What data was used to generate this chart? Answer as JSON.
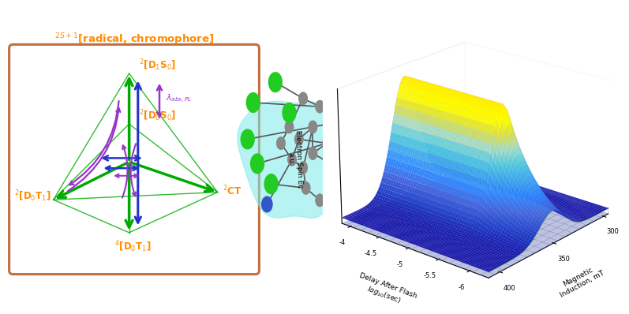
{
  "title_text": "$^{2S+1}$[radical, chromophore]",
  "title_color": "#FF8C00",
  "box_color": "#C07040",
  "bg_color": "#FFFFFF",
  "labels": {
    "D1S0": "$^{2}$[D$_1$S$_0$]",
    "D0S0": "$^{2}$[D$_0$S$_0$]",
    "D0T1_up": "$^{2}$[D$_0$T$_1$]",
    "D0T1_down": "$^{4}$[D$_0$T$_1$]",
    "CT": "$^{2}$CT"
  },
  "label_color": "#FF8C00",
  "lambda_label": "$\\lambda_{abs,PL}$",
  "lambda_color": "#9933CC",
  "green_color": "#00AA00",
  "blue_color": "#2233CC",
  "purple_color": "#9933CC",
  "plot3d_xlabel": "Magnetic\nInduction, mT",
  "plot3d_ylabel": "Delay After Flash\n$log_{10}$(sec)",
  "plot3d_zlabel": "Electron Spin Ec\na.u.",
  "cyan_bg": "#7EEAEA"
}
